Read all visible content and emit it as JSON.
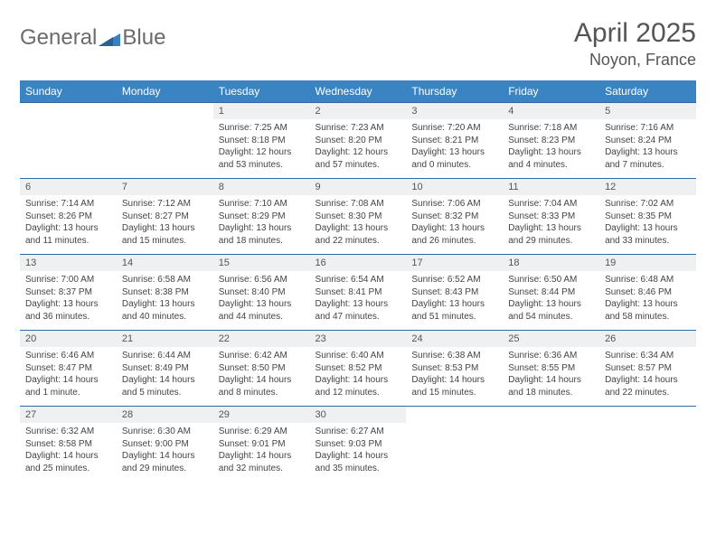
{
  "brand": {
    "part1": "General",
    "part2": "Blue"
  },
  "title": "April 2025",
  "location": "Noyon, France",
  "colors": {
    "header_bg": "#3b84c4",
    "header_text": "#ffffff",
    "daynum_bg": "#eef0f2",
    "border": "#2f6aa0",
    "text": "#444444",
    "title_text": "#555555"
  },
  "daynames": [
    "Sunday",
    "Monday",
    "Tuesday",
    "Wednesday",
    "Thursday",
    "Friday",
    "Saturday"
  ],
  "weeks": [
    {
      "nums": [
        "",
        "",
        "1",
        "2",
        "3",
        "4",
        "5"
      ],
      "cells": [
        null,
        null,
        {
          "sr": "Sunrise: 7:25 AM",
          "ss": "Sunset: 8:18 PM",
          "dl": "Daylight: 12 hours and 53 minutes."
        },
        {
          "sr": "Sunrise: 7:23 AM",
          "ss": "Sunset: 8:20 PM",
          "dl": "Daylight: 12 hours and 57 minutes."
        },
        {
          "sr": "Sunrise: 7:20 AM",
          "ss": "Sunset: 8:21 PM",
          "dl": "Daylight: 13 hours and 0 minutes."
        },
        {
          "sr": "Sunrise: 7:18 AM",
          "ss": "Sunset: 8:23 PM",
          "dl": "Daylight: 13 hours and 4 minutes."
        },
        {
          "sr": "Sunrise: 7:16 AM",
          "ss": "Sunset: 8:24 PM",
          "dl": "Daylight: 13 hours and 7 minutes."
        }
      ]
    },
    {
      "nums": [
        "6",
        "7",
        "8",
        "9",
        "10",
        "11",
        "12"
      ],
      "cells": [
        {
          "sr": "Sunrise: 7:14 AM",
          "ss": "Sunset: 8:26 PM",
          "dl": "Daylight: 13 hours and 11 minutes."
        },
        {
          "sr": "Sunrise: 7:12 AM",
          "ss": "Sunset: 8:27 PM",
          "dl": "Daylight: 13 hours and 15 minutes."
        },
        {
          "sr": "Sunrise: 7:10 AM",
          "ss": "Sunset: 8:29 PM",
          "dl": "Daylight: 13 hours and 18 minutes."
        },
        {
          "sr": "Sunrise: 7:08 AM",
          "ss": "Sunset: 8:30 PM",
          "dl": "Daylight: 13 hours and 22 minutes."
        },
        {
          "sr": "Sunrise: 7:06 AM",
          "ss": "Sunset: 8:32 PM",
          "dl": "Daylight: 13 hours and 26 minutes."
        },
        {
          "sr": "Sunrise: 7:04 AM",
          "ss": "Sunset: 8:33 PM",
          "dl": "Daylight: 13 hours and 29 minutes."
        },
        {
          "sr": "Sunrise: 7:02 AM",
          "ss": "Sunset: 8:35 PM",
          "dl": "Daylight: 13 hours and 33 minutes."
        }
      ]
    },
    {
      "nums": [
        "13",
        "14",
        "15",
        "16",
        "17",
        "18",
        "19"
      ],
      "cells": [
        {
          "sr": "Sunrise: 7:00 AM",
          "ss": "Sunset: 8:37 PM",
          "dl": "Daylight: 13 hours and 36 minutes."
        },
        {
          "sr": "Sunrise: 6:58 AM",
          "ss": "Sunset: 8:38 PM",
          "dl": "Daylight: 13 hours and 40 minutes."
        },
        {
          "sr": "Sunrise: 6:56 AM",
          "ss": "Sunset: 8:40 PM",
          "dl": "Daylight: 13 hours and 44 minutes."
        },
        {
          "sr": "Sunrise: 6:54 AM",
          "ss": "Sunset: 8:41 PM",
          "dl": "Daylight: 13 hours and 47 minutes."
        },
        {
          "sr": "Sunrise: 6:52 AM",
          "ss": "Sunset: 8:43 PM",
          "dl": "Daylight: 13 hours and 51 minutes."
        },
        {
          "sr": "Sunrise: 6:50 AM",
          "ss": "Sunset: 8:44 PM",
          "dl": "Daylight: 13 hours and 54 minutes."
        },
        {
          "sr": "Sunrise: 6:48 AM",
          "ss": "Sunset: 8:46 PM",
          "dl": "Daylight: 13 hours and 58 minutes."
        }
      ]
    },
    {
      "nums": [
        "20",
        "21",
        "22",
        "23",
        "24",
        "25",
        "26"
      ],
      "cells": [
        {
          "sr": "Sunrise: 6:46 AM",
          "ss": "Sunset: 8:47 PM",
          "dl": "Daylight: 14 hours and 1 minute."
        },
        {
          "sr": "Sunrise: 6:44 AM",
          "ss": "Sunset: 8:49 PM",
          "dl": "Daylight: 14 hours and 5 minutes."
        },
        {
          "sr": "Sunrise: 6:42 AM",
          "ss": "Sunset: 8:50 PM",
          "dl": "Daylight: 14 hours and 8 minutes."
        },
        {
          "sr": "Sunrise: 6:40 AM",
          "ss": "Sunset: 8:52 PM",
          "dl": "Daylight: 14 hours and 12 minutes."
        },
        {
          "sr": "Sunrise: 6:38 AM",
          "ss": "Sunset: 8:53 PM",
          "dl": "Daylight: 14 hours and 15 minutes."
        },
        {
          "sr": "Sunrise: 6:36 AM",
          "ss": "Sunset: 8:55 PM",
          "dl": "Daylight: 14 hours and 18 minutes."
        },
        {
          "sr": "Sunrise: 6:34 AM",
          "ss": "Sunset: 8:57 PM",
          "dl": "Daylight: 14 hours and 22 minutes."
        }
      ]
    },
    {
      "nums": [
        "27",
        "28",
        "29",
        "30",
        "",
        "",
        ""
      ],
      "cells": [
        {
          "sr": "Sunrise: 6:32 AM",
          "ss": "Sunset: 8:58 PM",
          "dl": "Daylight: 14 hours and 25 minutes."
        },
        {
          "sr": "Sunrise: 6:30 AM",
          "ss": "Sunset: 9:00 PM",
          "dl": "Daylight: 14 hours and 29 minutes."
        },
        {
          "sr": "Sunrise: 6:29 AM",
          "ss": "Sunset: 9:01 PM",
          "dl": "Daylight: 14 hours and 32 minutes."
        },
        {
          "sr": "Sunrise: 6:27 AM",
          "ss": "Sunset: 9:03 PM",
          "dl": "Daylight: 14 hours and 35 minutes."
        },
        null,
        null,
        null
      ]
    }
  ]
}
